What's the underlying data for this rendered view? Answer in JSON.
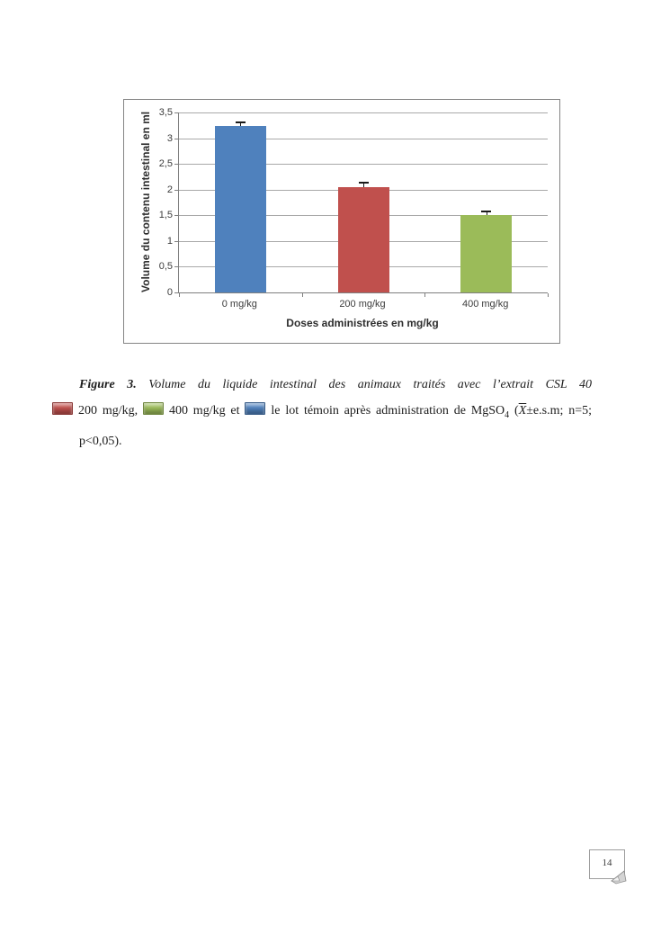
{
  "chart_data": {
    "type": "bar",
    "categories": [
      "0 mg/kg",
      "200 mg/kg",
      "400 mg/kg"
    ],
    "values": [
      3.23,
      2.05,
      1.5
    ],
    "error_plus": [
      0.09,
      0.11,
      0.1
    ],
    "bar_colors": [
      "#4F81BD",
      "#C0504D",
      "#9BBB59"
    ],
    "title": "",
    "xlabel": "Doses administrées en mg/kg",
    "ylabel": "Volume du contenu intestinal en ml",
    "ylim": [
      0,
      3.5
    ],
    "ytick_step": 0.5,
    "ytick_labels": [
      "0",
      "0,5",
      "1",
      "1,5",
      "2",
      "2,5",
      "3",
      "3,5"
    ],
    "grid": true,
    "legend_position": "none"
  },
  "caption": {
    "figure_label": "Figure 3.",
    "line1_text": "Volume du liquide intestinal des animaux traités avec l’extrait CSL 40",
    "swatch_colors": [
      "#C0504D",
      "#9BBB59",
      "#4F81BD"
    ],
    "seg_200": "200 mg/kg,",
    "seg_400": "400 mg/kg et",
    "seg_temoin": "le lot témoin après administration de MgSO",
    "mgso4_subscript": "4",
    "paren_open": "(",
    "xbar": "X",
    "seg_stats": "±e.s.m; n=5;",
    "line3": "p<0,05)."
  },
  "page_footer": {
    "page_number": "14"
  }
}
